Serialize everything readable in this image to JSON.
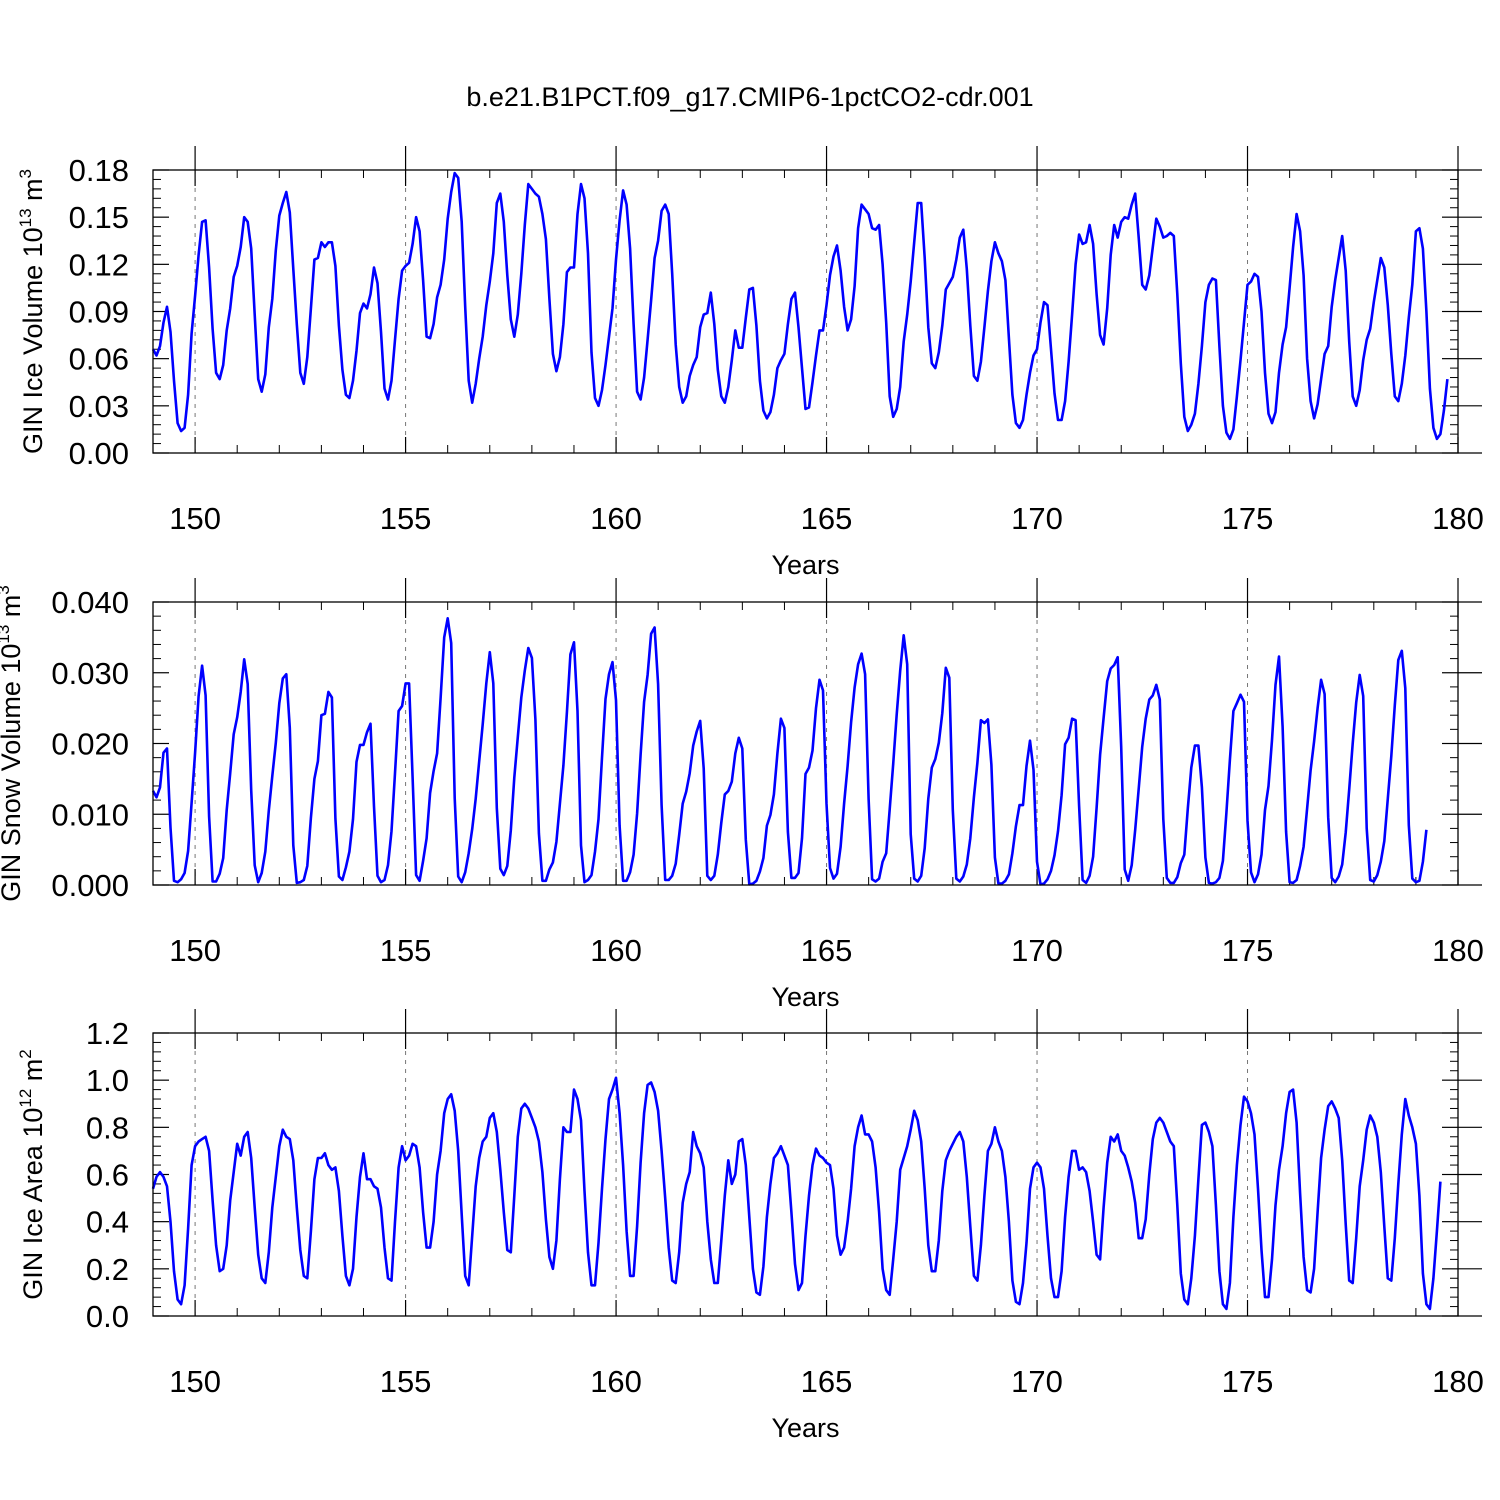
{
  "title": "b.e21.B1PCT.f09_g17.CMIP6-1pctCO2-cdr.001",
  "line_color": "#0000ff",
  "chart_data": [
    {
      "type": "line",
      "ylabel_main": "GIN Ice Volume 10",
      "ylabel_exp": "13",
      "ylabel_unit": " m",
      "ylabel_unit_exp": "3",
      "xlabel": "Years",
      "xlim": [
        149,
        180
      ],
      "ylim": [
        0,
        0.18
      ],
      "yticks": [
        0,
        0.03,
        0.06,
        0.09,
        0.12,
        0.15,
        0.18
      ],
      "ytick_labels": [
        "0.00",
        "0.03",
        "0.06",
        "0.09",
        "0.12",
        "0.15",
        "0.18"
      ],
      "xticks": [
        150,
        155,
        160,
        165,
        170,
        175,
        180
      ],
      "xtick_labels": [
        "150",
        "155",
        "160",
        "165",
        "170",
        "175",
        "180"
      ],
      "vgrid_years": [
        150,
        155,
        160,
        165,
        170,
        175
      ],
      "series_start": 149.0,
      "series_step": 0.08333,
      "values": [
        0.066,
        0.062,
        0.068,
        0.083,
        0.093,
        0.077,
        0.046,
        0.019,
        0.014,
        0.016,
        0.037,
        0.076,
        0.1,
        0.126,
        0.147,
        0.148,
        0.118,
        0.079,
        0.051,
        0.047,
        0.056,
        0.078,
        0.092,
        0.112,
        0.119,
        0.131,
        0.15,
        0.147,
        0.13,
        0.088,
        0.047,
        0.039,
        0.05,
        0.08,
        0.098,
        0.129,
        0.151,
        0.159,
        0.166,
        0.153,
        0.117,
        0.082,
        0.051,
        0.044,
        0.061,
        0.092,
        0.123,
        0.124,
        0.134,
        0.131,
        0.134,
        0.134,
        0.119,
        0.081,
        0.053,
        0.037,
        0.035,
        0.046,
        0.065,
        0.089,
        0.095,
        0.092,
        0.101,
        0.118,
        0.108,
        0.077,
        0.041,
        0.034,
        0.046,
        0.072,
        0.098,
        0.116,
        0.119,
        0.121,
        0.133,
        0.15,
        0.141,
        0.11,
        0.074,
        0.073,
        0.082,
        0.099,
        0.107,
        0.123,
        0.149,
        0.166,
        0.178,
        0.175,
        0.147,
        0.093,
        0.046,
        0.032,
        0.044,
        0.06,
        0.074,
        0.094,
        0.109,
        0.127,
        0.159,
        0.165,
        0.147,
        0.113,
        0.085,
        0.074,
        0.088,
        0.114,
        0.145,
        0.171,
        0.168,
        0.165,
        0.163,
        0.152,
        0.136,
        0.098,
        0.063,
        0.052,
        0.061,
        0.082,
        0.115,
        0.118,
        0.118,
        0.152,
        0.171,
        0.162,
        0.127,
        0.064,
        0.035,
        0.03,
        0.04,
        0.056,
        0.074,
        0.092,
        0.123,
        0.148,
        0.167,
        0.158,
        0.13,
        0.082,
        0.039,
        0.034,
        0.048,
        0.072,
        0.097,
        0.124,
        0.135,
        0.154,
        0.158,
        0.152,
        0.114,
        0.069,
        0.042,
        0.032,
        0.036,
        0.049,
        0.056,
        0.061,
        0.08,
        0.088,
        0.089,
        0.102,
        0.082,
        0.053,
        0.036,
        0.032,
        0.042,
        0.059,
        0.078,
        0.067,
        0.067,
        0.086,
        0.104,
        0.105,
        0.081,
        0.046,
        0.027,
        0.022,
        0.026,
        0.037,
        0.054,
        0.059,
        0.063,
        0.082,
        0.098,
        0.102,
        0.08,
        0.054,
        0.028,
        0.029,
        0.045,
        0.062,
        0.078,
        0.078,
        0.094,
        0.113,
        0.125,
        0.132,
        0.116,
        0.093,
        0.078,
        0.085,
        0.106,
        0.143,
        0.158,
        0.155,
        0.152,
        0.143,
        0.142,
        0.145,
        0.12,
        0.083,
        0.036,
        0.023,
        0.028,
        0.042,
        0.071,
        0.088,
        0.109,
        0.134,
        0.159,
        0.159,
        0.124,
        0.08,
        0.057,
        0.054,
        0.064,
        0.081,
        0.104,
        0.108,
        0.112,
        0.123,
        0.137,
        0.142,
        0.117,
        0.081,
        0.049,
        0.046,
        0.058,
        0.08,
        0.103,
        0.122,
        0.134,
        0.127,
        0.122,
        0.11,
        0.073,
        0.037,
        0.019,
        0.016,
        0.021,
        0.037,
        0.051,
        0.062,
        0.066,
        0.083,
        0.096,
        0.094,
        0.066,
        0.038,
        0.021,
        0.021,
        0.033,
        0.058,
        0.088,
        0.12,
        0.139,
        0.133,
        0.134,
        0.145,
        0.133,
        0.101,
        0.075,
        0.069,
        0.092,
        0.126,
        0.145,
        0.137,
        0.147,
        0.15,
        0.149,
        0.158,
        0.165,
        0.137,
        0.107,
        0.104,
        0.113,
        0.131,
        0.149,
        0.144,
        0.137,
        0.138,
        0.14,
        0.138,
        0.101,
        0.057,
        0.023,
        0.014,
        0.018,
        0.025,
        0.044,
        0.068,
        0.096,
        0.107,
        0.111,
        0.11,
        0.068,
        0.03,
        0.013,
        0.009,
        0.015,
        0.036,
        0.059,
        0.083,
        0.107,
        0.109,
        0.114,
        0.112,
        0.09,
        0.051,
        0.025,
        0.019,
        0.026,
        0.051,
        0.069,
        0.08,
        0.105,
        0.131,
        0.152,
        0.141,
        0.113,
        0.06,
        0.033,
        0.022,
        0.031,
        0.047,
        0.063,
        0.068,
        0.093,
        0.11,
        0.124,
        0.138,
        0.116,
        0.071,
        0.036,
        0.03,
        0.04,
        0.059,
        0.072,
        0.079,
        0.096,
        0.11,
        0.124,
        0.118,
        0.094,
        0.063,
        0.036,
        0.033,
        0.044,
        0.062,
        0.086,
        0.107,
        0.141,
        0.143,
        0.13,
        0.09,
        0.041,
        0.016,
        0.009,
        0.012,
        0.027,
        0.047
      ]
    },
    {
      "type": "line",
      "ylabel_main": "GIN Snow Volume 10",
      "ylabel_exp": "13",
      "ylabel_unit": " m",
      "ylabel_unit_exp": "3",
      "xlabel": "Years",
      "xlim": [
        149,
        180
      ],
      "ylim": [
        0,
        0.04
      ],
      "yticks": [
        0,
        0.01,
        0.02,
        0.03,
        0.04
      ],
      "ytick_labels": [
        "0.000",
        "0.010",
        "0.020",
        "0.030",
        "0.040"
      ],
      "xticks": [
        150,
        155,
        160,
        165,
        170,
        175,
        180
      ],
      "xtick_labels": [
        "150",
        "155",
        "160",
        "165",
        "170",
        "175",
        "180"
      ],
      "vgrid_years": [
        150,
        155,
        160,
        165,
        170,
        175
      ],
      "series_start": 149.0,
      "series_step": 0.08333,
      "values": [
        0.0133,
        0.0124,
        0.0138,
        0.0187,
        0.0193,
        0.0081,
        0.0006,
        0.0004,
        0.0008,
        0.0017,
        0.0048,
        0.0116,
        0.0187,
        0.0267,
        0.031,
        0.0268,
        0.0097,
        0.0005,
        0.0005,
        0.0016,
        0.0038,
        0.0106,
        0.0158,
        0.0213,
        0.0237,
        0.0273,
        0.0319,
        0.0284,
        0.0134,
        0.0028,
        0.0004,
        0.0017,
        0.0047,
        0.0105,
        0.0154,
        0.0201,
        0.0257,
        0.0292,
        0.0298,
        0.0222,
        0.0056,
        0.0003,
        0.0004,
        0.0007,
        0.0027,
        0.0095,
        0.015,
        0.0175,
        0.024,
        0.0242,
        0.0273,
        0.0265,
        0.0094,
        0.0012,
        0.0007,
        0.0025,
        0.0047,
        0.0093,
        0.0174,
        0.0198,
        0.0198,
        0.0216,
        0.0228,
        0.0111,
        0.0013,
        0.0004,
        0.0007,
        0.0028,
        0.0076,
        0.0158,
        0.0246,
        0.0253,
        0.0285,
        0.0285,
        0.0152,
        0.0014,
        0.0006,
        0.0034,
        0.0066,
        0.013,
        0.0161,
        0.0186,
        0.0264,
        0.035,
        0.0377,
        0.0342,
        0.0123,
        0.0012,
        0.0004,
        0.0018,
        0.0045,
        0.0079,
        0.0122,
        0.0175,
        0.0227,
        0.0285,
        0.0329,
        0.0285,
        0.0109,
        0.0023,
        0.0014,
        0.0027,
        0.0077,
        0.0152,
        0.0209,
        0.0265,
        0.0303,
        0.0335,
        0.0321,
        0.0234,
        0.0073,
        0.0006,
        0.0006,
        0.0022,
        0.0032,
        0.0061,
        0.0115,
        0.0169,
        0.0244,
        0.0326,
        0.0343,
        0.0246,
        0.0056,
        0.0004,
        0.0007,
        0.0014,
        0.0047,
        0.0093,
        0.018,
        0.0263,
        0.0298,
        0.0315,
        0.0261,
        0.0084,
        0.0006,
        0.0006,
        0.0018,
        0.0043,
        0.0101,
        0.0184,
        0.0259,
        0.0297,
        0.0355,
        0.0364,
        0.0284,
        0.0113,
        0.0007,
        0.0007,
        0.0013,
        0.003,
        0.0071,
        0.0115,
        0.0132,
        0.0158,
        0.0197,
        0.0217,
        0.0232,
        0.0165,
        0.0013,
        0.0007,
        0.0013,
        0.0043,
        0.0088,
        0.0128,
        0.0133,
        0.0146,
        0.0186,
        0.0208,
        0.0193,
        0.0064,
        0.0001,
        0.0002,
        0.0006,
        0.0019,
        0.0038,
        0.0084,
        0.0099,
        0.0128,
        0.0186,
        0.0235,
        0.0222,
        0.0075,
        0.001,
        0.001,
        0.0017,
        0.0066,
        0.0157,
        0.0166,
        0.019,
        0.025,
        0.029,
        0.0275,
        0.0115,
        0.0024,
        0.0009,
        0.0016,
        0.0054,
        0.0115,
        0.0168,
        0.023,
        0.0279,
        0.0312,
        0.0327,
        0.0298,
        0.0122,
        0.0008,
        0.0005,
        0.0009,
        0.0033,
        0.0045,
        0.0107,
        0.0171,
        0.0241,
        0.0303,
        0.0353,
        0.0312,
        0.0072,
        0.0009,
        0.0005,
        0.0013,
        0.0052,
        0.0122,
        0.0166,
        0.0178,
        0.0201,
        0.0243,
        0.0307,
        0.0293,
        0.0106,
        0.0009,
        0.0005,
        0.0012,
        0.0029,
        0.0066,
        0.0124,
        0.0173,
        0.0233,
        0.0229,
        0.0234,
        0.017,
        0.0039,
        0.0002,
        0.0002,
        0.0006,
        0.0015,
        0.0045,
        0.0083,
        0.0113,
        0.0113,
        0.0168,
        0.0204,
        0.0163,
        0.0033,
        0.0001,
        0.0002,
        0.0008,
        0.002,
        0.0042,
        0.0076,
        0.0127,
        0.0199,
        0.0208,
        0.0235,
        0.0233,
        0.0112,
        0.0007,
        0.0003,
        0.0013,
        0.004,
        0.0109,
        0.0184,
        0.0236,
        0.0288,
        0.0306,
        0.0311,
        0.0322,
        0.0195,
        0.0022,
        0.0006,
        0.0028,
        0.0078,
        0.0136,
        0.0195,
        0.0235,
        0.0262,
        0.0268,
        0.0283,
        0.0262,
        0.0093,
        0.001,
        0.0003,
        0.0003,
        0.0011,
        0.0031,
        0.0043,
        0.0108,
        0.0166,
        0.0197,
        0.0197,
        0.0138,
        0.0039,
        0.0003,
        0.0002,
        0.0004,
        0.001,
        0.0034,
        0.0102,
        0.0177,
        0.0246,
        0.0257,
        0.0269,
        0.0259,
        0.0091,
        0.0018,
        0.0004,
        0.0015,
        0.0043,
        0.0106,
        0.014,
        0.0205,
        0.0283,
        0.0323,
        0.0224,
        0.0075,
        0.0004,
        0.0003,
        0.0007,
        0.0027,
        0.0054,
        0.0108,
        0.0162,
        0.0203,
        0.025,
        0.029,
        0.027,
        0.0096,
        0.001,
        0.0004,
        0.0012,
        0.0029,
        0.0074,
        0.0135,
        0.02,
        0.0258,
        0.0297,
        0.0267,
        0.008,
        0.0007,
        0.0005,
        0.0014,
        0.0033,
        0.0062,
        0.0122,
        0.0182,
        0.0254,
        0.0318,
        0.0331,
        0.0278,
        0.0085,
        0.0009,
        0.0004,
        0.0006,
        0.0033,
        0.0078
      ]
    },
    {
      "type": "line",
      "ylabel_main": "GIN Ice Area 10",
      "ylabel_exp": "12",
      "ylabel_unit": " m",
      "ylabel_unit_exp": "2",
      "xlabel": "Years",
      "xlim": [
        149,
        180
      ],
      "ylim": [
        0,
        1.2
      ],
      "yticks": [
        0,
        0.2,
        0.4,
        0.6,
        0.8,
        1.0,
        1.2
      ],
      "ytick_labels": [
        "0.0",
        "0.2",
        "0.4",
        "0.6",
        "0.8",
        "1.0",
        "1.2"
      ],
      "xticks": [
        150,
        155,
        160,
        165,
        170,
        175,
        180
      ],
      "xtick_labels": [
        "150",
        "155",
        "160",
        "165",
        "170",
        "175",
        "180"
      ],
      "vgrid_years": [
        150,
        155,
        160,
        165,
        170,
        175
      ],
      "series_start": 149.0,
      "series_step": 0.08333,
      "values": [
        0.54,
        0.59,
        0.61,
        0.59,
        0.55,
        0.4,
        0.19,
        0.07,
        0.05,
        0.13,
        0.37,
        0.64,
        0.72,
        0.74,
        0.75,
        0.76,
        0.7,
        0.49,
        0.3,
        0.19,
        0.2,
        0.3,
        0.49,
        0.61,
        0.73,
        0.68,
        0.76,
        0.78,
        0.67,
        0.46,
        0.26,
        0.16,
        0.14,
        0.27,
        0.46,
        0.59,
        0.72,
        0.79,
        0.76,
        0.75,
        0.66,
        0.46,
        0.28,
        0.17,
        0.16,
        0.36,
        0.58,
        0.67,
        0.67,
        0.69,
        0.64,
        0.62,
        0.63,
        0.53,
        0.34,
        0.17,
        0.13,
        0.2,
        0.42,
        0.59,
        0.69,
        0.58,
        0.58,
        0.55,
        0.54,
        0.46,
        0.29,
        0.16,
        0.15,
        0.4,
        0.63,
        0.72,
        0.66,
        0.68,
        0.73,
        0.72,
        0.63,
        0.44,
        0.29,
        0.29,
        0.4,
        0.6,
        0.7,
        0.86,
        0.92,
        0.94,
        0.87,
        0.7,
        0.43,
        0.17,
        0.13,
        0.34,
        0.55,
        0.67,
        0.74,
        0.76,
        0.84,
        0.86,
        0.78,
        0.62,
        0.44,
        0.28,
        0.27,
        0.51,
        0.76,
        0.88,
        0.9,
        0.88,
        0.84,
        0.8,
        0.74,
        0.61,
        0.41,
        0.25,
        0.2,
        0.32,
        0.58,
        0.8,
        0.78,
        0.78,
        0.96,
        0.92,
        0.83,
        0.53,
        0.27,
        0.13,
        0.13,
        0.31,
        0.54,
        0.75,
        0.92,
        0.96,
        1.01,
        0.86,
        0.64,
        0.36,
        0.17,
        0.17,
        0.38,
        0.65,
        0.86,
        0.98,
        0.99,
        0.95,
        0.87,
        0.7,
        0.5,
        0.29,
        0.15,
        0.14,
        0.27,
        0.48,
        0.56,
        0.61,
        0.78,
        0.72,
        0.69,
        0.63,
        0.4,
        0.24,
        0.14,
        0.14,
        0.32,
        0.51,
        0.66,
        0.56,
        0.6,
        0.74,
        0.75,
        0.64,
        0.42,
        0.2,
        0.1,
        0.09,
        0.21,
        0.42,
        0.56,
        0.67,
        0.69,
        0.72,
        0.68,
        0.64,
        0.44,
        0.22,
        0.11,
        0.14,
        0.34,
        0.51,
        0.64,
        0.71,
        0.68,
        0.67,
        0.65,
        0.64,
        0.54,
        0.34,
        0.26,
        0.29,
        0.4,
        0.54,
        0.72,
        0.8,
        0.85,
        0.77,
        0.77,
        0.74,
        0.63,
        0.44,
        0.2,
        0.11,
        0.09,
        0.24,
        0.4,
        0.62,
        0.67,
        0.72,
        0.79,
        0.87,
        0.83,
        0.74,
        0.54,
        0.3,
        0.19,
        0.19,
        0.32,
        0.53,
        0.66,
        0.7,
        0.73,
        0.76,
        0.78,
        0.74,
        0.59,
        0.38,
        0.17,
        0.15,
        0.3,
        0.51,
        0.7,
        0.73,
        0.8,
        0.74,
        0.7,
        0.59,
        0.4,
        0.15,
        0.06,
        0.05,
        0.14,
        0.31,
        0.54,
        0.63,
        0.65,
        0.63,
        0.54,
        0.34,
        0.16,
        0.08,
        0.08,
        0.19,
        0.42,
        0.59,
        0.7,
        0.7,
        0.62,
        0.63,
        0.61,
        0.53,
        0.4,
        0.26,
        0.24,
        0.46,
        0.65,
        0.76,
        0.74,
        0.77,
        0.7,
        0.68,
        0.63,
        0.57,
        0.48,
        0.33,
        0.33,
        0.41,
        0.6,
        0.75,
        0.82,
        0.84,
        0.82,
        0.78,
        0.74,
        0.72,
        0.47,
        0.18,
        0.07,
        0.05,
        0.16,
        0.34,
        0.58,
        0.81,
        0.82,
        0.78,
        0.72,
        0.47,
        0.19,
        0.05,
        0.03,
        0.14,
        0.42,
        0.64,
        0.81,
        0.93,
        0.91,
        0.86,
        0.77,
        0.54,
        0.28,
        0.08,
        0.08,
        0.24,
        0.47,
        0.62,
        0.72,
        0.86,
        0.95,
        0.96,
        0.82,
        0.52,
        0.25,
        0.11,
        0.1,
        0.2,
        0.44,
        0.67,
        0.79,
        0.89,
        0.91,
        0.88,
        0.84,
        0.66,
        0.39,
        0.15,
        0.14,
        0.33,
        0.55,
        0.66,
        0.79,
        0.85,
        0.82,
        0.76,
        0.61,
        0.38,
        0.16,
        0.15,
        0.33,
        0.56,
        0.77,
        0.92,
        0.85,
        0.8,
        0.73,
        0.51,
        0.18,
        0.05,
        0.03,
        0.16,
        0.36,
        0.57
      ]
    }
  ]
}
